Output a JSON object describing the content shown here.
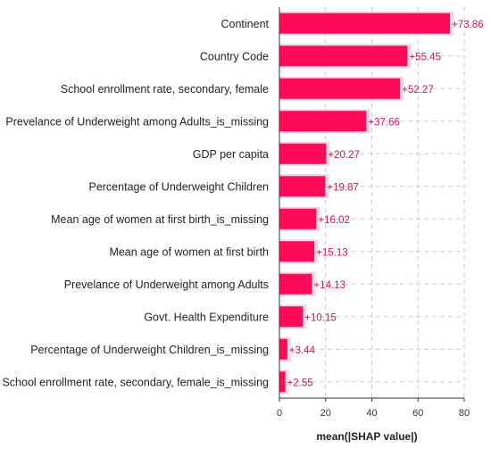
{
  "chart_data": {
    "type": "bar",
    "orientation": "horizontal",
    "title": "",
    "xlabel": "mean(|SHAP value|)",
    "ylabel": "",
    "xlim": [
      0,
      80
    ],
    "xticks": [
      0,
      20,
      40,
      60,
      80
    ],
    "grid": true,
    "bar_color": "#ff0b57",
    "label_color": "#c2185b",
    "categories": [
      "Continent",
      "Country Code",
      "School enrollment rate, secondary, female",
      "Prevelance of Underweight among Adults_is_missing",
      "GDP per capita",
      "Percentage of Underweight Children",
      "Mean age of women at first birth_is_missing",
      "Mean age of women at first birth",
      "Prevelance of Underweight among Adults",
      "Govt. Health Expenditure",
      "Percentage of Underweight Children_is_missing",
      "School enrollment rate, secondary, female_is_missing"
    ],
    "values": [
      73.86,
      55.45,
      52.27,
      37.66,
      20.27,
      19.87,
      16.02,
      15.13,
      14.13,
      10.15,
      3.44,
      2.55
    ],
    "value_labels": [
      "+73.86",
      "+55.45",
      "+52.27",
      "+37.66",
      "+20.27",
      "+19.87",
      "+16.02",
      "+15.13",
      "+14.13",
      "+10.15",
      "+3.44",
      "+2.55"
    ]
  }
}
